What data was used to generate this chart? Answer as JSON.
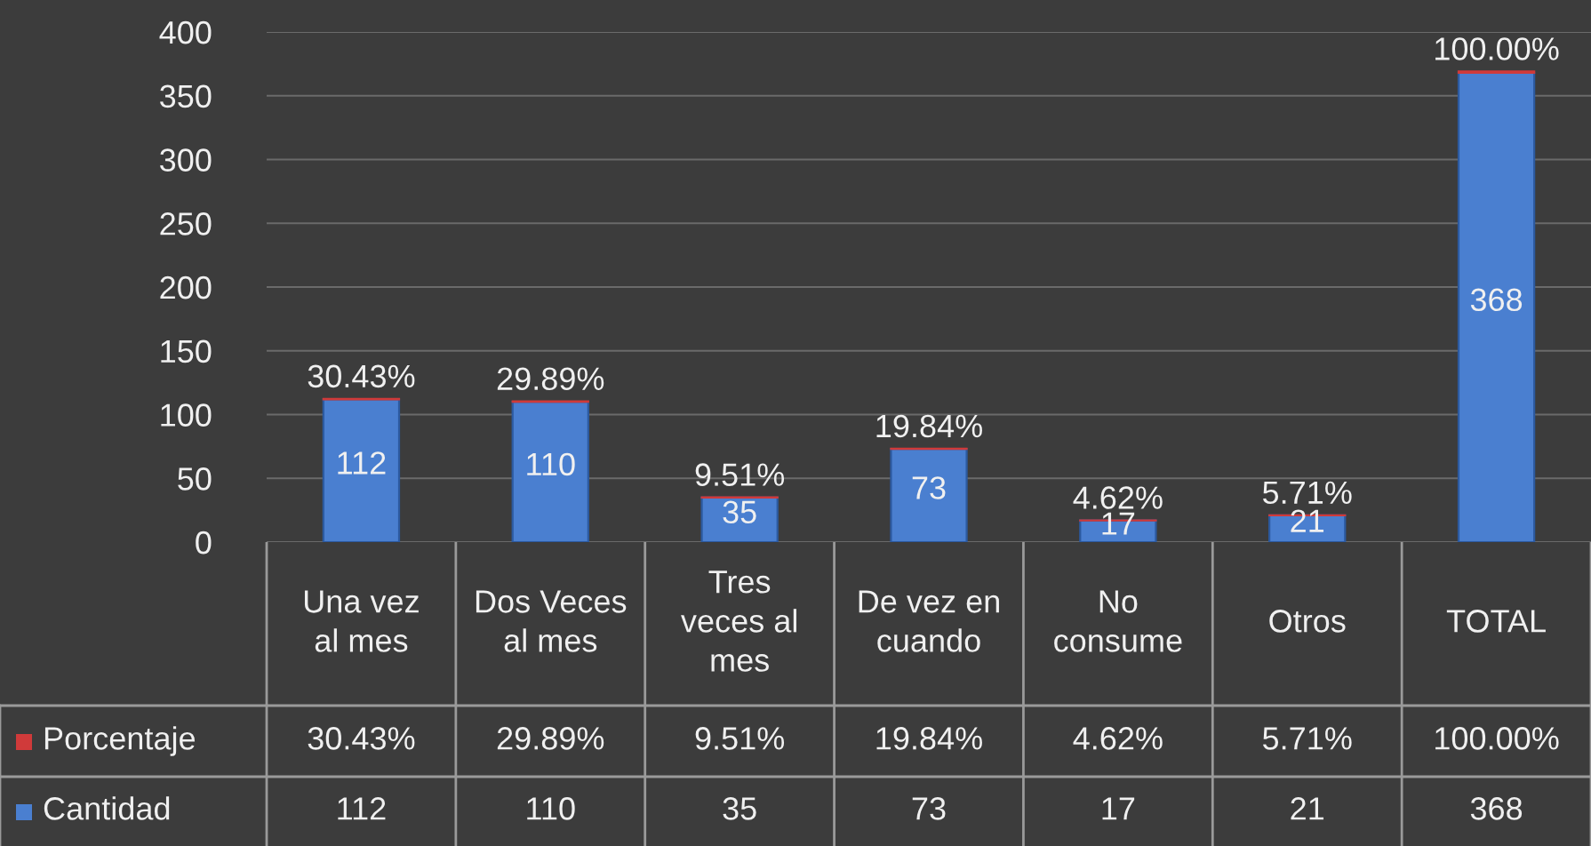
{
  "chart_data": {
    "type": "bar",
    "stacked": true,
    "categories": [
      "Una vez al mes",
      "Dos Veces al mes",
      "Tres veces al mes",
      "De vez en cuando",
      "No consume",
      "Otros",
      "TOTAL"
    ],
    "series": [
      {
        "name": "Cantidad",
        "color": "#4a7fd0",
        "values": [
          112,
          110,
          35,
          73,
          17,
          21,
          368
        ],
        "value_labels": [
          "112",
          "110",
          "35",
          "73",
          "17",
          "21",
          "368"
        ]
      },
      {
        "name": "Porcentaje",
        "color": "#d03a3a",
        "values": [
          0.3043,
          0.2989,
          0.0951,
          0.1984,
          0.0462,
          0.0571,
          1.0
        ],
        "value_labels": [
          "30.43%",
          "29.89%",
          "9.51%",
          "19.84%",
          "4.62%",
          "5.71%",
          "100.00%"
        ]
      }
    ],
    "ylim": [
      0,
      400
    ],
    "yticks": [
      0,
      50,
      100,
      150,
      200,
      250,
      300,
      350,
      400
    ],
    "grid": "y",
    "legend": "bottom"
  }
}
